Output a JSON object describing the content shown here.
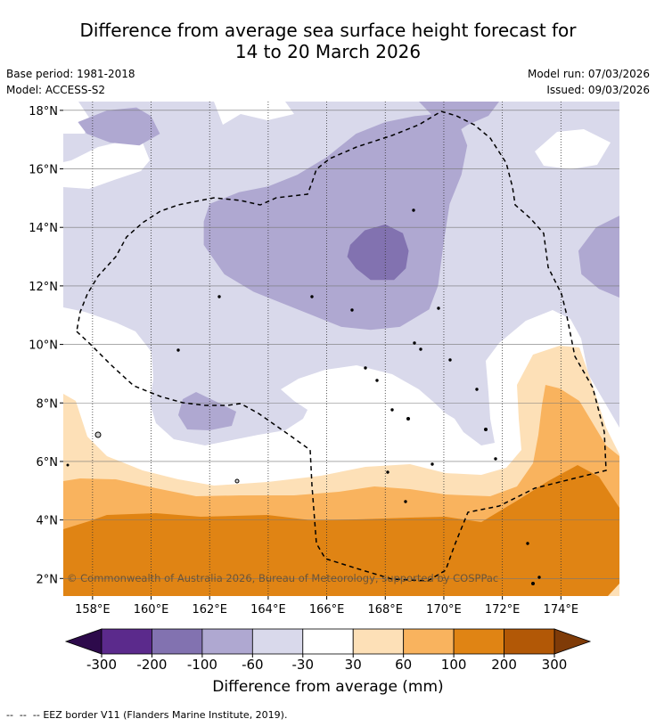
{
  "chart_data": {
    "type": "heatmap",
    "title_line1": "Difference from average sea surface height forecast for",
    "title_line2": "14 to 20 March 2026",
    "base_period": "Base period: 1981-2018",
    "model": "Model: ACCESS-S2",
    "model_run": "Model run: 07/03/2026",
    "issued": "Issued: 09/03/2026",
    "xlim": [
      157.0,
      176.0
    ],
    "ylim": [
      1.4,
      18.3
    ],
    "x_ticks": [
      158,
      160,
      162,
      164,
      166,
      168,
      170,
      172,
      174
    ],
    "x_tick_labels": [
      "158°E",
      "160°E",
      "162°E",
      "164°E",
      "166°E",
      "168°E",
      "170°E",
      "172°E",
      "174°E"
    ],
    "y_ticks": [
      2,
      4,
      6,
      8,
      10,
      12,
      14,
      16,
      18
    ],
    "y_tick_labels": [
      "2°N",
      "4°N",
      "6°N",
      "8°N",
      "10°N",
      "12°N",
      "14°N",
      "16°N",
      "18°N"
    ],
    "legend": {
      "label": "Difference from average (mm)",
      "boundaries": [
        -300,
        -200,
        -100,
        -60,
        -30,
        30,
        60,
        100,
        200,
        300
      ],
      "boundary_labels": [
        "-300",
        "-200",
        "-100",
        "-60",
        "-30",
        "30",
        "60",
        "100",
        "200",
        "300"
      ],
      "colors": [
        "#5b2a8c",
        "#8272b0",
        "#afa8d1",
        "#d9d9eb",
        "#ffffff",
        "#fde0b7",
        "#f9b35e",
        "#e08414",
        "#b25806"
      ],
      "under_color": "#2d0a4b",
      "over_color": "#7f3b08"
    },
    "contour_fills": [
      {
        "level": "-100 to -60",
        "color": "#afa8d1",
        "polygon": [
          [
            162.0,
            14.8
          ],
          [
            163.0,
            15.2
          ],
          [
            164.0,
            15.4
          ],
          [
            165.0,
            15.8
          ],
          [
            166.0,
            16.4
          ],
          [
            167.0,
            17.2
          ],
          [
            168.0,
            17.6
          ],
          [
            169.0,
            17.8
          ],
          [
            170.0,
            17.9
          ],
          [
            170.5,
            17.6
          ],
          [
            170.8,
            16.8
          ],
          [
            170.6,
            15.8
          ],
          [
            170.2,
            14.8
          ],
          [
            170.0,
            13.5
          ],
          [
            169.8,
            12.0
          ],
          [
            169.5,
            11.2
          ],
          [
            168.5,
            10.6
          ],
          [
            167.5,
            10.5
          ],
          [
            166.5,
            10.6
          ],
          [
            165.5,
            11.0
          ],
          [
            164.5,
            11.4
          ],
          [
            163.5,
            11.8
          ],
          [
            162.5,
            12.4
          ],
          [
            161.8,
            13.4
          ],
          [
            161.8,
            14.2
          ]
        ]
      },
      {
        "level": "-200 to -100",
        "color": "#8272b0",
        "polygon": [
          [
            166.8,
            13.4
          ],
          [
            167.3,
            13.9
          ],
          [
            168.0,
            14.1
          ],
          [
            168.6,
            13.8
          ],
          [
            168.8,
            13.2
          ],
          [
            168.7,
            12.6
          ],
          [
            168.3,
            12.2
          ],
          [
            167.5,
            12.2
          ],
          [
            167.0,
            12.6
          ],
          [
            166.7,
            13.0
          ]
        ]
      },
      {
        "level": "-100 to -60",
        "color": "#afa8d1",
        "polygon": [
          [
            157.5,
            17.6
          ],
          [
            158.5,
            18.0
          ],
          [
            159.5,
            18.1
          ],
          [
            160.0,
            17.8
          ],
          [
            160.3,
            17.2
          ],
          [
            159.6,
            16.8
          ],
          [
            158.6,
            16.9
          ],
          [
            157.8,
            17.2
          ]
        ]
      },
      {
        "level": "-100 to -60",
        "color": "#afa8d1",
        "polygon": [
          [
            174.6,
            13.2
          ],
          [
            175.2,
            14.0
          ],
          [
            176.0,
            14.4
          ],
          [
            176.0,
            11.6
          ],
          [
            175.3,
            11.9
          ],
          [
            174.7,
            12.4
          ]
        ]
      }
    ],
    "footer_legend": "EEZ border V11 (Flanders Marine Institute, 2019).",
    "copyright": "© Commonwealth of Australia 2026, Bureau of Meteorology, supported by COSPPac"
  }
}
